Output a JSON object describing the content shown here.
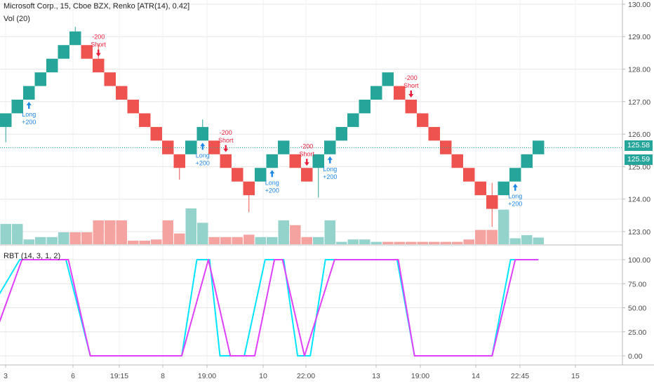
{
  "header": {
    "title": "Microsoft Corp., 15, Cboe BZX, Renko [ATR(14), 0.42]",
    "volume_legend": "Vol (20)",
    "indicator_legend": "RBT (14, 3, 1, 2)"
  },
  "colors": {
    "up": "#26a69a",
    "down": "#ef5350",
    "volume_up": "#94d3cc",
    "volume_down": "#f5a3a1",
    "long_signal": "#1e88e5",
    "short_signal": "#e91e3c",
    "rbt_fast": "#00e5ff",
    "rbt_slow": "#e040fb",
    "axis_text": "#4a4a4a",
    "grid": "#e6e6e6"
  },
  "price_tags": {
    "last": "125.58",
    "close": "125.59"
  },
  "chart_data": [
    {
      "type": "renko",
      "title": "Microsoft Corp., 15, Cboe BZX, Renko [ATR(14), 0.42]",
      "yaxis": {
        "ticks": [
          "123.00",
          "124.00",
          "125.00",
          "126.00",
          "127.00",
          "128.00",
          "129.00",
          "130.00"
        ],
        "range": [
          122.55,
          130.1
        ]
      },
      "xaxis": {
        "ticks": [
          "3",
          "6",
          "19:15",
          "8",
          "19:00",
          "10",
          "22:00",
          "13",
          "19:00",
          "14",
          "22:45",
          "15"
        ]
      },
      "brick_size": 0.42,
      "bricks": [
        {
          "i": 0,
          "open": 126.22,
          "close": 126.64,
          "dir": "up"
        },
        {
          "i": 1,
          "open": 126.64,
          "close": 127.06,
          "dir": "up"
        },
        {
          "i": 2,
          "open": 127.06,
          "close": 127.48,
          "dir": "up"
        },
        {
          "i": 3,
          "open": 127.48,
          "close": 127.9,
          "dir": "up"
        },
        {
          "i": 4,
          "open": 127.9,
          "close": 128.32,
          "dir": "up"
        },
        {
          "i": 5,
          "open": 128.32,
          "close": 128.74,
          "dir": "up"
        },
        {
          "i": 6,
          "open": 128.74,
          "close": 129.16,
          "dir": "up"
        },
        {
          "i": 7,
          "open": 128.74,
          "close": 128.32,
          "dir": "down"
        },
        {
          "i": 8,
          "open": 128.32,
          "close": 127.9,
          "dir": "down"
        },
        {
          "i": 9,
          "open": 127.9,
          "close": 127.48,
          "dir": "down"
        },
        {
          "i": 10,
          "open": 127.48,
          "close": 127.06,
          "dir": "down"
        },
        {
          "i": 11,
          "open": 127.06,
          "close": 126.64,
          "dir": "down"
        },
        {
          "i": 12,
          "open": 126.64,
          "close": 126.22,
          "dir": "down"
        },
        {
          "i": 13,
          "open": 126.22,
          "close": 125.8,
          "dir": "down"
        },
        {
          "i": 14,
          "open": 125.8,
          "close": 125.38,
          "dir": "down"
        },
        {
          "i": 15,
          "open": 125.38,
          "close": 124.96,
          "dir": "down"
        },
        {
          "i": 16,
          "open": 125.38,
          "close": 125.8,
          "dir": "up"
        },
        {
          "i": 17,
          "open": 125.8,
          "close": 126.22,
          "dir": "up"
        },
        {
          "i": 18,
          "open": 125.8,
          "close": 125.38,
          "dir": "down"
        },
        {
          "i": 19,
          "open": 125.38,
          "close": 124.96,
          "dir": "down"
        },
        {
          "i": 20,
          "open": 124.96,
          "close": 124.54,
          "dir": "down"
        },
        {
          "i": 21,
          "open": 124.54,
          "close": 124.12,
          "dir": "down"
        },
        {
          "i": 22,
          "open": 124.54,
          "close": 124.96,
          "dir": "up"
        },
        {
          "i": 23,
          "open": 124.96,
          "close": 125.38,
          "dir": "up"
        },
        {
          "i": 24,
          "open": 125.38,
          "close": 125.8,
          "dir": "up"
        },
        {
          "i": 25,
          "open": 125.38,
          "close": 124.96,
          "dir": "down"
        },
        {
          "i": 26,
          "open": 124.96,
          "close": 124.54,
          "dir": "down"
        },
        {
          "i": 27,
          "open": 124.96,
          "close": 125.38,
          "dir": "up"
        },
        {
          "i": 28,
          "open": 125.38,
          "close": 125.8,
          "dir": "up"
        },
        {
          "i": 29,
          "open": 125.8,
          "close": 126.22,
          "dir": "up"
        },
        {
          "i": 30,
          "open": 126.22,
          "close": 126.64,
          "dir": "up"
        },
        {
          "i": 31,
          "open": 126.64,
          "close": 127.06,
          "dir": "up"
        },
        {
          "i": 32,
          "open": 127.06,
          "close": 127.48,
          "dir": "up"
        },
        {
          "i": 33,
          "open": 127.48,
          "close": 127.9,
          "dir": "up"
        },
        {
          "i": 34,
          "open": 127.48,
          "close": 127.06,
          "dir": "down"
        },
        {
          "i": 35,
          "open": 127.06,
          "close": 126.64,
          "dir": "down"
        },
        {
          "i": 36,
          "open": 126.64,
          "close": 126.22,
          "dir": "down"
        },
        {
          "i": 37,
          "open": 126.22,
          "close": 125.8,
          "dir": "down"
        },
        {
          "i": 38,
          "open": 125.8,
          "close": 125.38,
          "dir": "down"
        },
        {
          "i": 39,
          "open": 125.38,
          "close": 124.96,
          "dir": "down"
        },
        {
          "i": 40,
          "open": 124.96,
          "close": 124.54,
          "dir": "down"
        },
        {
          "i": 41,
          "open": 124.54,
          "close": 124.12,
          "dir": "down"
        },
        {
          "i": 42,
          "open": 124.12,
          "close": 123.7,
          "dir": "down"
        },
        {
          "i": 43,
          "open": 124.12,
          "close": 124.54,
          "dir": "up"
        },
        {
          "i": 44,
          "open": 124.54,
          "close": 124.96,
          "dir": "up"
        },
        {
          "i": 45,
          "open": 124.96,
          "close": 125.38,
          "dir": "up"
        },
        {
          "i": 46,
          "open": 125.38,
          "close": 125.8,
          "dir": "up"
        }
      ],
      "wicks": [
        {
          "i": 0,
          "low": 125.75
        },
        {
          "i": 6,
          "high": 129.3
        },
        {
          "i": 8,
          "high": 128.75
        },
        {
          "i": 15,
          "low": 124.6
        },
        {
          "i": 17,
          "high": 126.45
        },
        {
          "i": 21,
          "low": 123.6
        },
        {
          "i": 27,
          "low": 124.05
        },
        {
          "i": 42,
          "high": 124.5,
          "low": 123.15
        }
      ],
      "signals": [
        {
          "i": 2,
          "type": "long",
          "label": "Long",
          "value": "+200"
        },
        {
          "i": 8,
          "type": "short",
          "label": "Short",
          "value": "-200"
        },
        {
          "i": 17,
          "type": "long",
          "label": "Long",
          "value": "+200"
        },
        {
          "i": 19,
          "type": "short",
          "label": "Short",
          "value": "-200"
        },
        {
          "i": 23,
          "type": "long",
          "label": "Long",
          "value": "+200"
        },
        {
          "i": 26,
          "type": "short",
          "label": "Short",
          "value": "-200"
        },
        {
          "i": 28,
          "type": "long",
          "label": "Long",
          "value": "+200"
        },
        {
          "i": 35,
          "type": "short",
          "label": "Short",
          "value": "-200"
        },
        {
          "i": 44,
          "type": "long",
          "label": "Long",
          "value": "+200"
        }
      ],
      "last_price": 125.58
    },
    {
      "type": "bar",
      "title": "Vol (20)",
      "values_relative": [
        0.85,
        0.85,
        0.2,
        0.3,
        0.3,
        0.5,
        0.5,
        0.5,
        1.0,
        1.0,
        1.0,
        0.15,
        0.15,
        0.2,
        1.0,
        0.45,
        1.5,
        0.9,
        0.3,
        0.3,
        0.3,
        0.4,
        0.3,
        0.3,
        1.0,
        0.8,
        0.3,
        0.3,
        1.0,
        0.1,
        0.2,
        0.2,
        0.1,
        0.1,
        0.1,
        0.1,
        0.1,
        0.1,
        0.1,
        0.1,
        0.2,
        0.6,
        0.6,
        1.45,
        0.25,
        0.38,
        0.28
      ],
      "directions": [
        "up",
        "up",
        "up",
        "up",
        "up",
        "up",
        "down",
        "down",
        "down",
        "down",
        "down",
        "down",
        "down",
        "down",
        "down",
        "down",
        "up",
        "up",
        "down",
        "down",
        "down",
        "down",
        "up",
        "up",
        "up",
        "down",
        "down",
        "up",
        "up",
        "up",
        "up",
        "up",
        "up",
        "down",
        "down",
        "down",
        "down",
        "down",
        "down",
        "down",
        "down",
        "down",
        "down",
        "up",
        "up",
        "up",
        "up"
      ]
    },
    {
      "type": "line",
      "title": "RBT (14, 3, 1, 2)",
      "yaxis": {
        "ticks": [
          "0.00",
          "25.00",
          "50.00",
          "75.00",
          "100.00"
        ],
        "range": [
          -8,
          108
        ]
      },
      "series": [
        {
          "color_key": "rbt_fast",
          "points": [
            [
              -1,
              55
            ],
            [
              1.2,
              100
            ],
            [
              5.2,
              100
            ],
            [
              7.3,
              0
            ],
            [
              15.2,
              0
            ],
            [
              16.5,
              100
            ],
            [
              17.6,
              100
            ],
            [
              18.5,
              0
            ],
            [
              20.6,
              0
            ],
            [
              22.4,
              100
            ],
            [
              24,
              100
            ],
            [
              25.2,
              0
            ],
            [
              26.3,
              0
            ],
            [
              27.6,
              100
            ],
            [
              33.8,
              100
            ],
            [
              35.3,
              0
            ],
            [
              42,
              0
            ],
            [
              43.6,
              100
            ],
            [
              46,
              100
            ]
          ]
        },
        {
          "color_key": "rbt_slow",
          "points": [
            [
              -1,
              20
            ],
            [
              1.4,
              100
            ],
            [
              5.4,
              100
            ],
            [
              7.3,
              0
            ],
            [
              15.2,
              0
            ],
            [
              17.5,
              100
            ],
            [
              19.4,
              0
            ],
            [
              21.5,
              0
            ],
            [
              23.2,
              100
            ],
            [
              23.9,
              100
            ],
            [
              25.8,
              0
            ],
            [
              28.4,
              100
            ],
            [
              33.9,
              100
            ],
            [
              35.3,
              0
            ],
            [
              42,
              0
            ],
            [
              44,
              100
            ],
            [
              46,
              100
            ]
          ]
        }
      ]
    }
  ]
}
